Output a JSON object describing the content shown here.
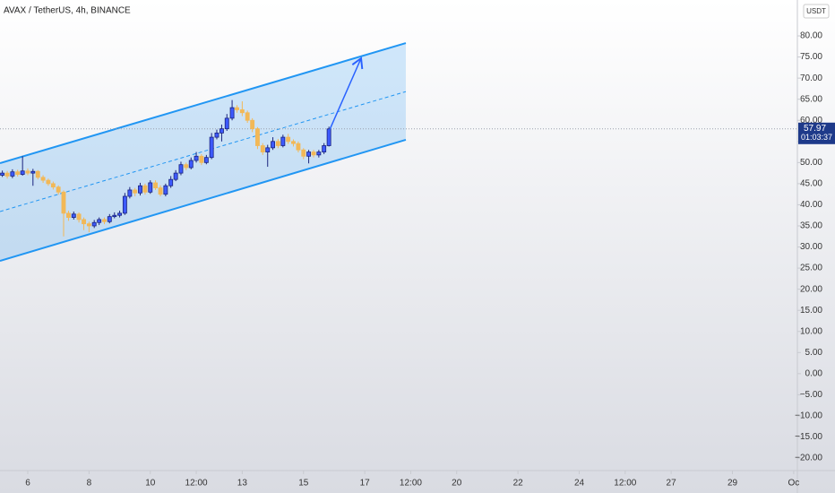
{
  "chart_data": {
    "type": "candlestick",
    "title": "AVAX / TetherUS, 4h, BINANCE",
    "currency": "USDT",
    "x": [
      5,
      5.17,
      5.33,
      5.5,
      5.67,
      5.83,
      6,
      6.17,
      6.33,
      6.5,
      6.67,
      6.83,
      7,
      7.17,
      7.33,
      7.5,
      7.67,
      7.83,
      8,
      8.17,
      8.33,
      8.5,
      8.67,
      8.83,
      9,
      9.17,
      9.33,
      9.5,
      9.67,
      9.83,
      10,
      10.17,
      10.33,
      10.5,
      10.67,
      10.83,
      11,
      11.17,
      11.33,
      11.5,
      11.67,
      11.83,
      12,
      12.17,
      12.33,
      12.5,
      12.67,
      12.83,
      13,
      13.17,
      13.33,
      13.5,
      13.67,
      13.83,
      14,
      14.17,
      14.33,
      14.5,
      14.67,
      14.83,
      15,
      15.17,
      15.33,
      15.5,
      15.67,
      15.83
    ],
    "open": [
      46.5,
      47,
      47.5,
      46.8,
      47.8,
      47.2,
      48,
      47.5,
      47.9,
      46.5,
      45.8,
      45,
      44.2,
      43,
      38,
      37,
      37.8,
      36.5,
      35.5,
      35,
      35.8,
      36.5,
      36,
      37.2,
      37.5,
      38,
      42,
      43.5,
      42.8,
      44.5,
      43,
      45.2,
      44,
      42.5,
      44.5,
      46,
      47.5,
      49.5,
      48.8,
      50.5,
      51.5,
      50,
      51.2,
      56,
      57,
      58,
      60.5,
      63,
      62.5,
      61.8,
      60,
      58,
      54,
      52.5,
      53.5,
      55,
      54,
      56,
      55,
      54.5,
      53,
      51.5,
      52.5,
      51.8,
      52.5,
      54
    ],
    "high": [
      47.6,
      48.1,
      48,
      48.4,
      48.3,
      51.5,
      48.6,
      48.5,
      48.2,
      47,
      46.2,
      45.5,
      44.6,
      43.4,
      38.6,
      38.4,
      38.2,
      37,
      36,
      36.4,
      37,
      37,
      37.8,
      38.2,
      38.6,
      42.8,
      44.2,
      44,
      45.2,
      45,
      45.8,
      45.8,
      44.6,
      45,
      46.8,
      48.2,
      50.2,
      50,
      51.2,
      52.5,
      52,
      51.8,
      57,
      57.8,
      59,
      61.5,
      64.8,
      63.6,
      64.5,
      62.3,
      60.5,
      58.4,
      54.6,
      54.2,
      56,
      55.6,
      56.6,
      56.8,
      55.5,
      55,
      53.4,
      53,
      53,
      53,
      54.6,
      58.5
    ],
    "low": [
      46,
      46.6,
      46.2,
      46.3,
      46.7,
      46.9,
      47,
      44.5,
      46,
      45.2,
      44.5,
      43.6,
      42.4,
      32.5,
      36.2,
      36.5,
      35.8,
      34,
      33.5,
      34.5,
      35.2,
      35.4,
      35.6,
      36.8,
      37,
      37.6,
      41.5,
      42,
      42.2,
      42.4,
      42.6,
      43.5,
      42,
      42,
      44,
      45.6,
      47,
      48.2,
      48.4,
      50,
      49.4,
      49.6,
      50.8,
      55.5,
      55,
      57.5,
      60,
      61.8,
      61,
      59.4,
      57.2,
      53.2,
      51.8,
      49,
      53,
      53.4,
      53.6,
      54.4,
      53.8,
      52.4,
      50.8,
      49.8,
      51.2,
      51.2,
      52,
      53.8
    ],
    "close": [
      47,
      47.5,
      46.8,
      47.8,
      47.2,
      48,
      47.5,
      47.9,
      46.5,
      45.8,
      45,
      44.2,
      43,
      38,
      37,
      37.8,
      36.5,
      35.5,
      35,
      35.8,
      36.5,
      36,
      37.2,
      37.5,
      38,
      42,
      43.5,
      42.8,
      44.5,
      43,
      45.2,
      44,
      42.5,
      44.5,
      46,
      47.5,
      49.5,
      48.8,
      50.5,
      51.5,
      50,
      51.2,
      56,
      57,
      58,
      60.5,
      63,
      62.5,
      61.8,
      60,
      58,
      54,
      52.5,
      53.5,
      55,
      54,
      56,
      55,
      54.5,
      53,
      51.5,
      52.5,
      51.8,
      52.5,
      54,
      57.97
    ],
    "up_color": "#3d5afe",
    "down_color": "#f2b857",
    "last_price": 57.97,
    "countdown": "01:03:37",
    "xlim": [
      5.094,
      31.12
    ],
    "xticks": [
      6,
      8,
      10,
      {
        "value": 11.5,
        "label": "12:00"
      },
      13,
      15,
      17,
      {
        "value": 18.5,
        "label": "12:00"
      },
      20,
      22,
      24,
      {
        "value": 25.5,
        "label": "12:00"
      },
      27,
      29,
      {
        "value": 31,
        "label": "Oc"
      }
    ],
    "ylim": [
      -22.96,
      88.5
    ],
    "yticks": [
      {
        "value": 80,
        "label": "80.00"
      },
      {
        "value": 75,
        "label": "75.00"
      },
      {
        "value": 70,
        "label": "70.00"
      },
      {
        "value": 65,
        "label": "65.00"
      },
      {
        "value": 60,
        "label": "60.00"
      },
      {
        "value": 55,
        "label": "55.00"
      },
      {
        "value": 50,
        "label": "50.00"
      },
      {
        "value": 45,
        "label": "45.00"
      },
      {
        "value": 40,
        "label": "40.00"
      },
      {
        "value": 35,
        "label": "35.00"
      },
      {
        "value": 30,
        "label": "30.00"
      },
      {
        "value": 25,
        "label": "25.00"
      },
      {
        "value": 20,
        "label": "20.00"
      },
      {
        "value": 15,
        "label": "15.00"
      },
      {
        "value": 10,
        "label": "10.00"
      },
      {
        "value": 5,
        "label": "5.00"
      },
      {
        "value": 0,
        "label": "0.00"
      },
      {
        "value": -5,
        "label": "−5.00"
      },
      {
        "value": -10,
        "label": "−10.00"
      },
      {
        "value": -15,
        "label": "−15.00"
      },
      {
        "value": -20,
        "label": "−20.00"
      }
    ],
    "grid": false,
    "channel": {
      "color": "#2196f3",
      "x": [
        5.094,
        18.34
      ],
      "upper": [
        49.85,
        78.3
      ],
      "middle": [
        38.4,
        66.8
      ],
      "lower": [
        26.7,
        55.4
      ]
    },
    "arrow": {
      "color": "#2962ff",
      "x": [
        15.85,
        16.88
      ],
      "y": [
        57.7,
        74.7
      ]
    }
  }
}
